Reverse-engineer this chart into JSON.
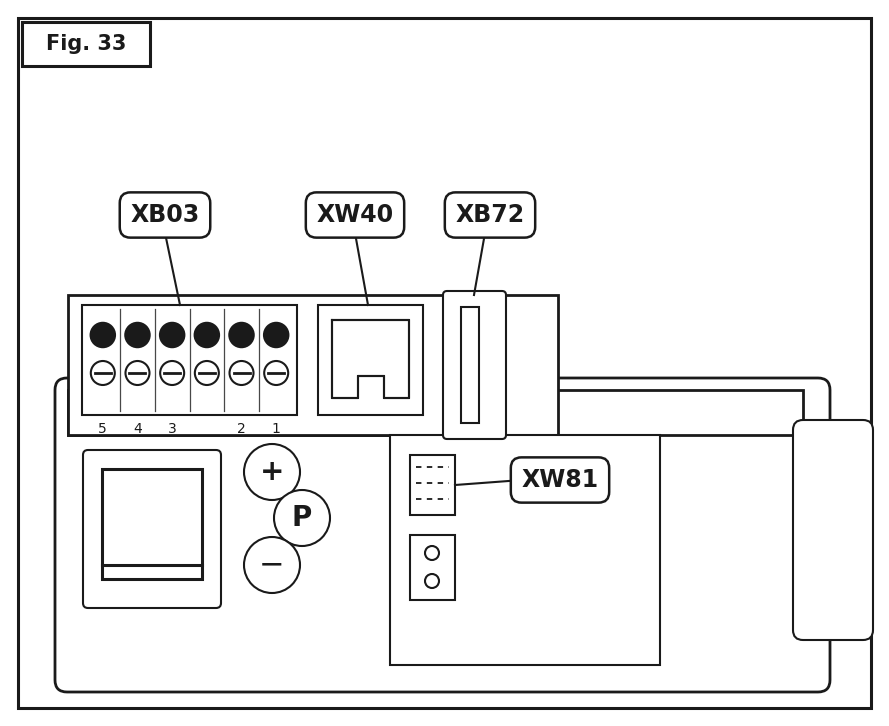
{
  "fig_label": "Fig. 33",
  "bg_color": "#ffffff",
  "line_color": "#1a1a1a",
  "label_xb03": "XB03",
  "label_xw40": "XW40",
  "label_xb72": "XB72",
  "label_xw81": "XW81",
  "terminal_labels": [
    "5",
    "4",
    "3",
    "2",
    "1"
  ],
  "font_size_fig": 15,
  "font_size_labels": 17,
  "font_size_terminals": 10
}
